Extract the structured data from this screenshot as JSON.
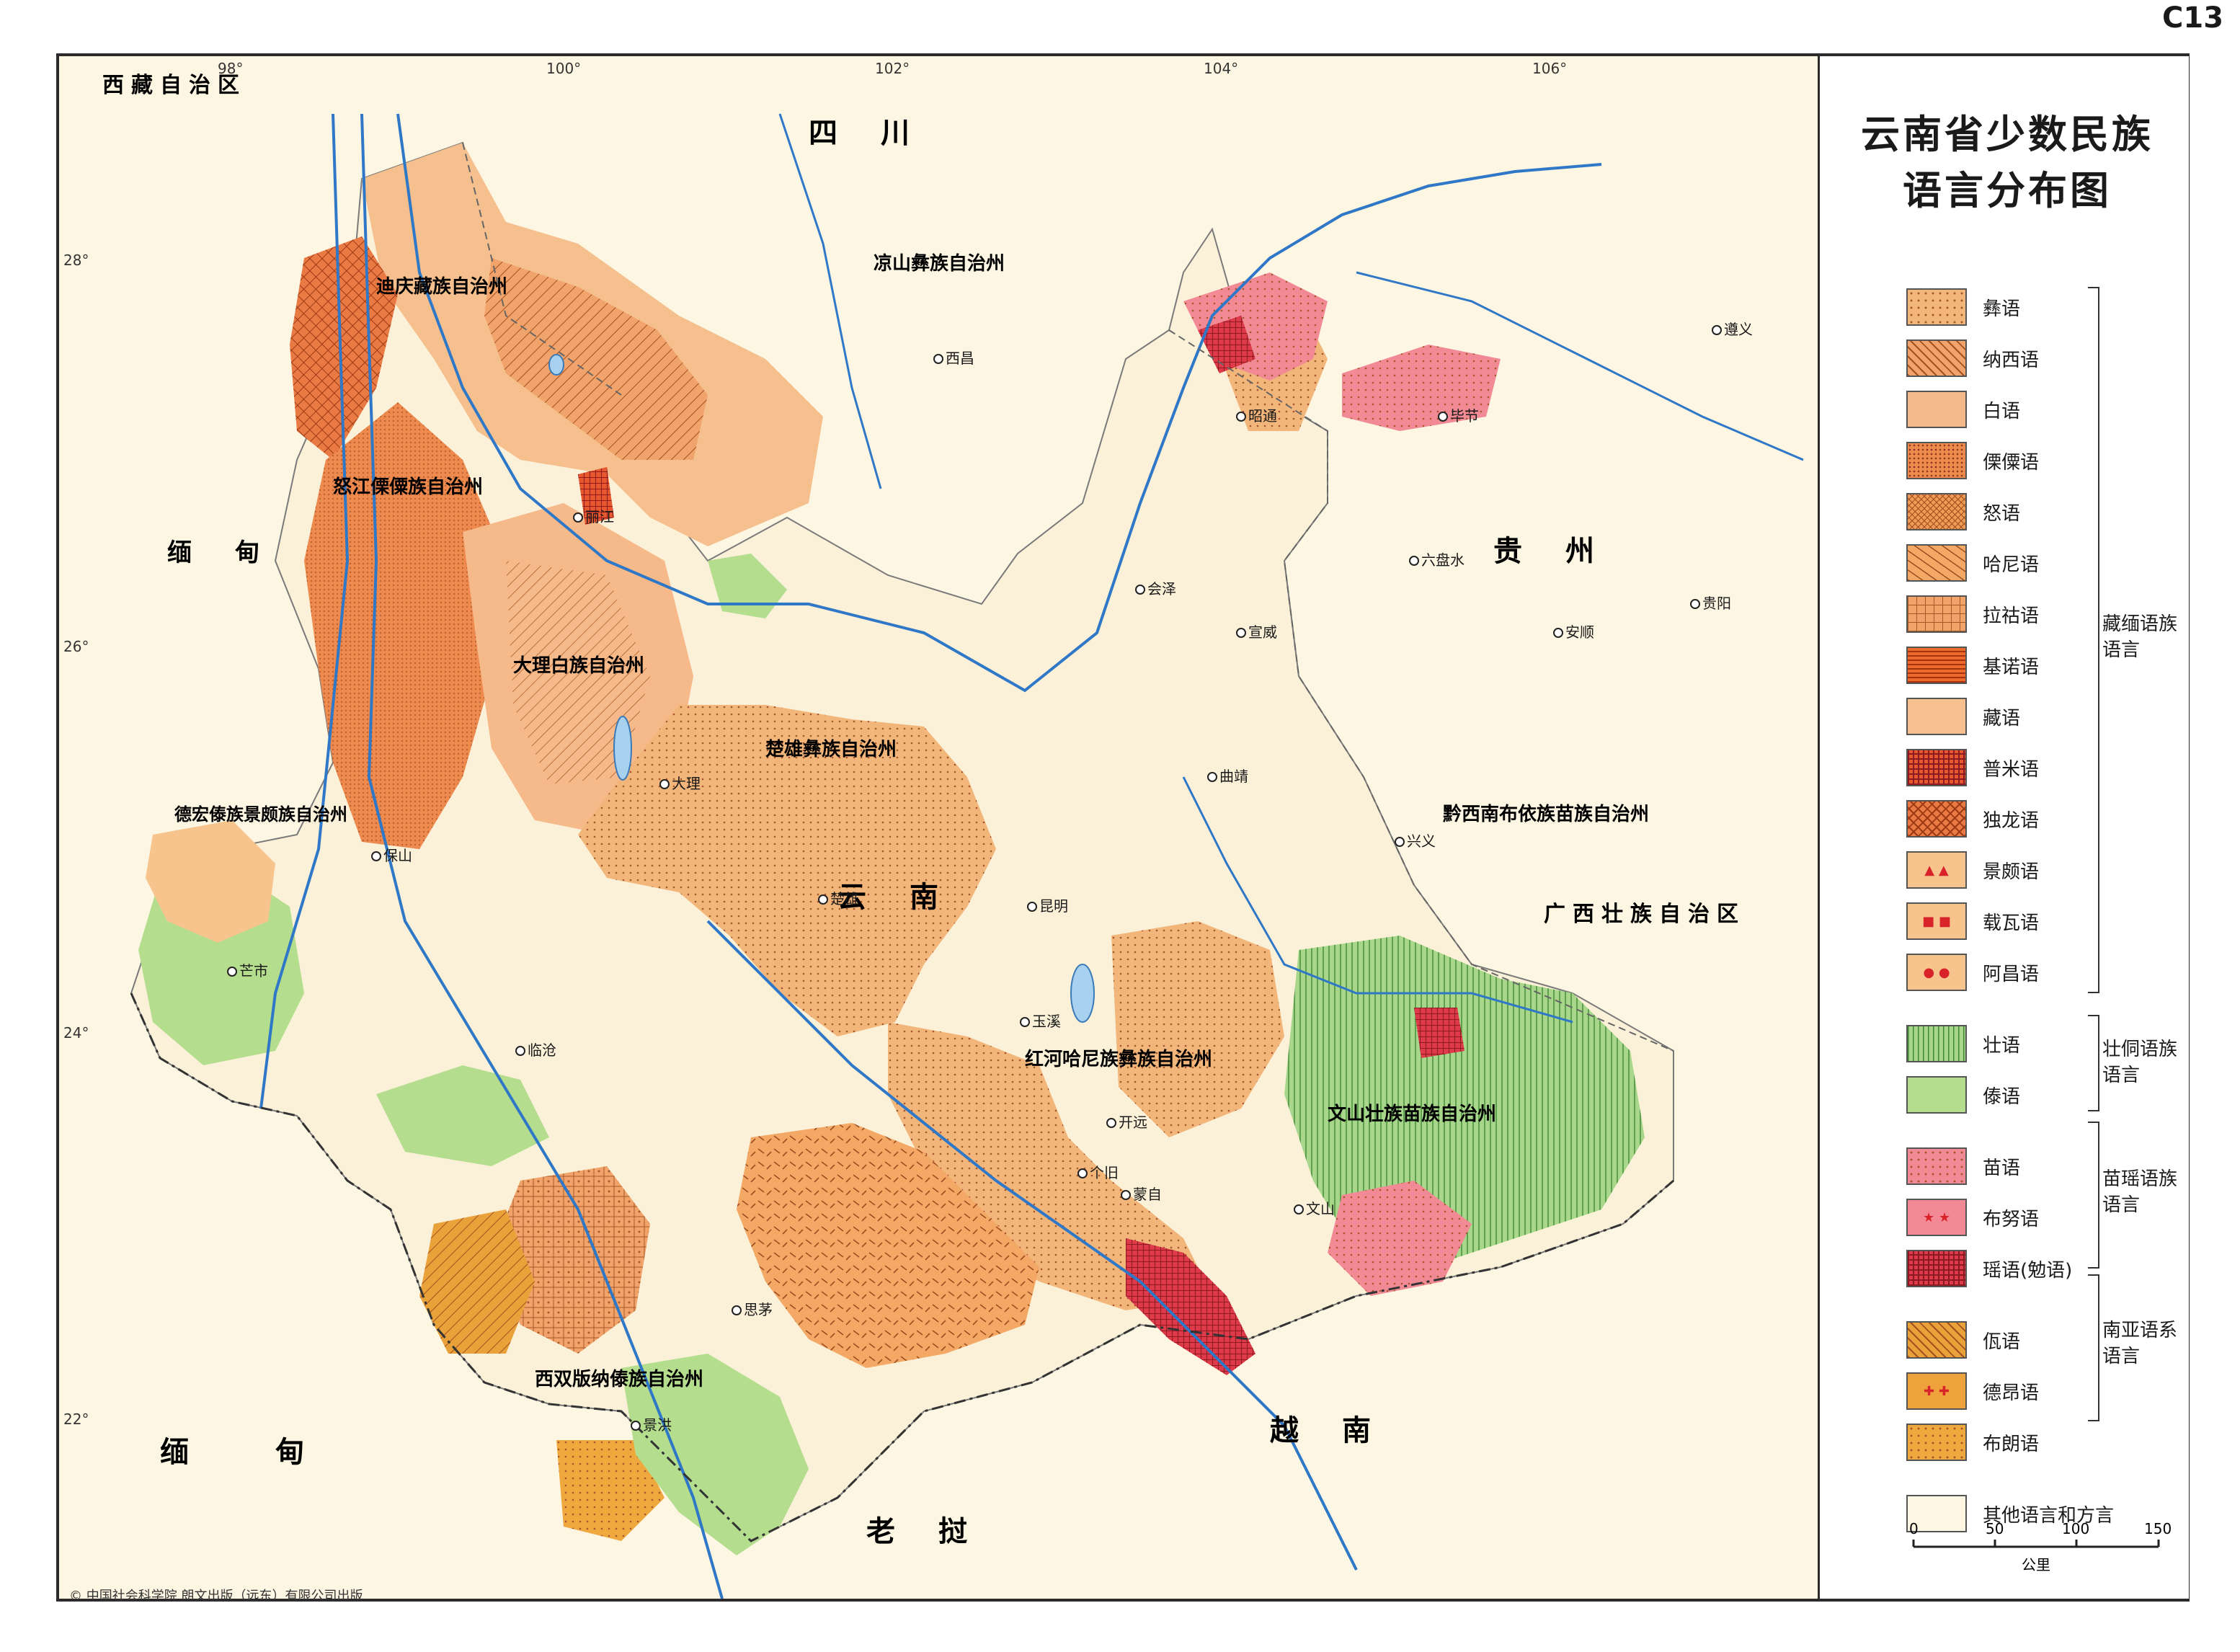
{
  "sheet_code": "C13",
  "map_title_line1": "云南省少数民族",
  "map_title_line2": "语言分布图",
  "legend": [
    {
      "label": "彝语",
      "color": "#f2b57a",
      "pattern": "dots-small",
      "icon": "none"
    },
    {
      "label": "纳西语",
      "color": "#f0a46b",
      "pattern": "hatch",
      "icon": "none"
    },
    {
      "label": "白语",
      "color": "#f5b98a",
      "pattern": "plain",
      "icon": "none"
    },
    {
      "label": "傈僳语",
      "color": "#ee8a4e",
      "pattern": "dots-dense",
      "icon": "none"
    },
    {
      "label": "怒语",
      "color": "#ef9a55",
      "pattern": "crosshatch-fine",
      "icon": "none"
    },
    {
      "label": "哈尼语",
      "color": "#f3a866",
      "pattern": "dashes",
      "icon": "none"
    },
    {
      "label": "拉祜语",
      "color": "#f1a36a",
      "pattern": "grid-dots",
      "icon": "none"
    },
    {
      "label": "基诺语",
      "color": "#ec6b2c",
      "pattern": "horizontal",
      "icon": "none"
    },
    {
      "label": "藏语",
      "color": "#f6c08e",
      "pattern": "plain",
      "icon": "none"
    },
    {
      "label": "普米语",
      "color": "#e8582e",
      "pattern": "grid",
      "icon": "none"
    },
    {
      "label": "独龙语",
      "color": "#ea7a44",
      "pattern": "crosshatch",
      "icon": "none"
    },
    {
      "label": "景颇语",
      "color": "#f6c48c",
      "pattern": "plain",
      "icon": "red-triangles"
    },
    {
      "label": "载瓦语",
      "color": "#f6c48c",
      "pattern": "plain",
      "icon": "red-squares"
    },
    {
      "label": "阿昌语",
      "color": "#f6c48c",
      "pattern": "plain",
      "icon": "red-circles"
    },
    {
      "label": "壮语",
      "color": "#a8d68a",
      "pattern": "vertical",
      "icon": "none"
    },
    {
      "label": "傣语",
      "color": "#b4dd8e",
      "pattern": "plain",
      "icon": "none"
    },
    {
      "label": "苗语",
      "color": "#f28a95",
      "pattern": "dots-small",
      "icon": "none"
    },
    {
      "label": "布努语",
      "color": "#f28a95",
      "pattern": "plain",
      "icon": "red-stars"
    },
    {
      "label": "瑶语(勉语)",
      "color": "#de3a4a",
      "pattern": "grid",
      "icon": "none"
    },
    {
      "label": "佤语",
      "color": "#e9a23a",
      "pattern": "hatch",
      "icon": "none"
    },
    {
      "label": "德昂语",
      "color": "#eea23c",
      "pattern": "plain",
      "icon": "red-crosses"
    },
    {
      "label": "布朗语",
      "color": "#efa83e",
      "pattern": "dots-small",
      "icon": "none"
    },
    {
      "label": "其他语言和方言",
      "color": "#fdf6e3",
      "pattern": "plain",
      "icon": "none"
    }
  ],
  "legend_groups": [
    {
      "label": "藏缅语族语言"
    },
    {
      "label": "壮侗语族语言"
    },
    {
      "label": "苗瑶语族语言"
    },
    {
      "label": "南亚语系语言"
    }
  ],
  "scale": {
    "ticks": [
      "0",
      "50",
      "100",
      "150"
    ],
    "unit": "公里"
  },
  "grid_labels": {
    "longitudes": [
      "98°",
      "100°",
      "102°",
      "104°",
      "106°"
    ],
    "latitudes": [
      "28°",
      "26°",
      "24°",
      "22°"
    ]
  },
  "regions": [
    "西藏自治区",
    "四川",
    "贵州",
    "云南",
    "广西壮族自治区",
    "缅甸",
    "缅",
    "甸",
    "老挝",
    "越南"
  ],
  "prefectures": [
    "迪庆藏族自治州",
    "怒江傈僳族自治州",
    "大理白族自治州",
    "楚雄彝族自治州",
    "凉山彝族自治州",
    "德宏傣族景颇族自治州",
    "红河哈尼族彝族自治州",
    "文山壮族苗族自治州",
    "西双版纳傣族自治州",
    "黔西南布依族苗族自治州"
  ],
  "cities": [
    "昆明",
    "西昌",
    "个旧",
    "思茅",
    "贵阳",
    "保山",
    "临沧",
    "丽江",
    "大理",
    "楚雄",
    "玉溪",
    "昭通",
    "曲靖",
    "景洪",
    "文山",
    "芒市",
    "六盘水",
    "开远",
    "蒙自",
    "会泽",
    "宣威",
    "兴义",
    "安顺",
    "毕节",
    "遵义"
  ],
  "copyright": "© 中国社会科学院  朗文出版（远东）有限公司出版"
}
